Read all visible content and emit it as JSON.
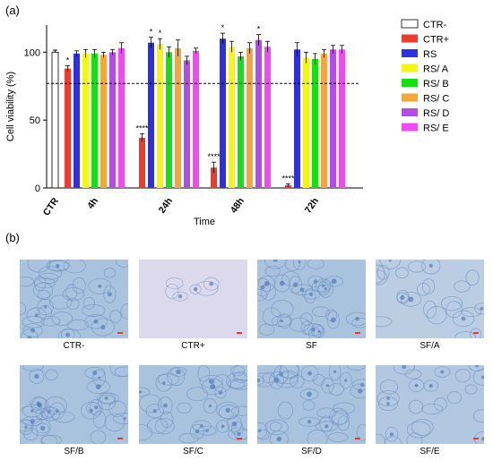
{
  "panel_a_label": "(a)",
  "panel_b_label": "(b)",
  "chart_data": {
    "type": "bar",
    "xlabel": "Time",
    "ylabel": "Cell viability (%)",
    "ylim": [
      0,
      120
    ],
    "yticks": [
      0,
      50,
      100
    ],
    "reference_line": 77,
    "categories": [
      "CTR",
      "4h",
      "24h",
      "48h",
      "72h"
    ],
    "legend": {
      "placement": "right",
      "entries": [
        "CTR-",
        "CTR+",
        "RS",
        "RS/ A",
        "RS/ B",
        "RS/ C",
        "RS/ D",
        "RS/ E"
      ]
    },
    "colors": {
      "CTR-": "#ffffff",
      "CTR+": "#f03a2a",
      "RS": "#2f2fe0",
      "RS/ A": "#f5f514",
      "RS/ B": "#14e014",
      "RS/ C": "#f5a63a",
      "RS/ D": "#b44be8",
      "RS/ E": "#f04af0"
    },
    "control": {
      "name": "CTR-",
      "value": 100,
      "error": 1.5
    },
    "groups": [
      {
        "time": "4h",
        "bars": [
          {
            "series": "CTR+",
            "value": 88,
            "error": 2,
            "sig": "*"
          },
          {
            "series": "RS",
            "value": 99,
            "error": 2,
            "sig": ""
          },
          {
            "series": "RS/ A",
            "value": 99,
            "error": 3,
            "sig": ""
          },
          {
            "series": "RS/ B",
            "value": 99,
            "error": 3,
            "sig": ""
          },
          {
            "series": "RS/ C",
            "value": 98,
            "error": 2,
            "sig": ""
          },
          {
            "series": "RS/ D",
            "value": 100,
            "error": 2,
            "sig": ""
          },
          {
            "series": "RS/ E",
            "value": 103,
            "error": 4,
            "sig": ""
          }
        ]
      },
      {
        "time": "24h",
        "bars": [
          {
            "series": "CTR+",
            "value": 37,
            "error": 3,
            "sig": "****"
          },
          {
            "series": "RS",
            "value": 107,
            "error": 4,
            "sig": "*"
          },
          {
            "series": "RS/ A",
            "value": 106,
            "error": 4,
            "sig": "*"
          },
          {
            "series": "RS/ B",
            "value": 100,
            "error": 4,
            "sig": ""
          },
          {
            "series": "RS/ C",
            "value": 103,
            "error": 6,
            "sig": ""
          },
          {
            "series": "RS/ D",
            "value": 94,
            "error": 3,
            "sig": ""
          },
          {
            "series": "RS/ E",
            "value": 101,
            "error": 2,
            "sig": ""
          }
        ]
      },
      {
        "time": "48h",
        "bars": [
          {
            "series": "CTR+",
            "value": 15,
            "error": 4,
            "sig": "****"
          },
          {
            "series": "RS",
            "value": 110,
            "error": 4,
            "sig": "*"
          },
          {
            "series": "RS/ A",
            "value": 104,
            "error": 4,
            "sig": ""
          },
          {
            "series": "RS/ B",
            "value": 97,
            "error": 3,
            "sig": ""
          },
          {
            "series": "RS/ C",
            "value": 103,
            "error": 4,
            "sig": ""
          },
          {
            "series": "RS/ D",
            "value": 109,
            "error": 4,
            "sig": "*"
          },
          {
            "series": "RS/ E",
            "value": 104,
            "error": 4,
            "sig": ""
          }
        ]
      },
      {
        "time": "72h",
        "bars": [
          {
            "series": "CTR+",
            "value": 2,
            "error": 1,
            "sig": "****"
          },
          {
            "series": "RS",
            "value": 102,
            "error": 5,
            "sig": ""
          },
          {
            "series": "RS/ A",
            "value": 96,
            "error": 4,
            "sig": ""
          },
          {
            "series": "RS/ B",
            "value": 95,
            "error": 4,
            "sig": ""
          },
          {
            "series": "RS/ C",
            "value": 99,
            "error": 3,
            "sig": ""
          },
          {
            "series": "RS/ D",
            "value": 102,
            "error": 3,
            "sig": ""
          },
          {
            "series": "RS/ E",
            "value": 102,
            "error": 3,
            "sig": ""
          }
        ]
      }
    ]
  },
  "micrographs": [
    {
      "caption": "CTR-",
      "tone": "#a9c3de",
      "density": "high"
    },
    {
      "caption": "CTR+",
      "tone": "#ddd9ec",
      "density": "low"
    },
    {
      "caption": "SF",
      "tone": "#a9c3de",
      "density": "high"
    },
    {
      "caption": "SF/A",
      "tone": "#bacde3",
      "density": "medium"
    },
    {
      "caption": "SF/B",
      "tone": "#a9c3de",
      "density": "high"
    },
    {
      "caption": "SF/C",
      "tone": "#a9c3de",
      "density": "high"
    },
    {
      "caption": "SF/D",
      "tone": "#a9c3de",
      "density": "high"
    },
    {
      "caption": "SF/E",
      "tone": "#b2c8e0",
      "density": "medium"
    }
  ]
}
